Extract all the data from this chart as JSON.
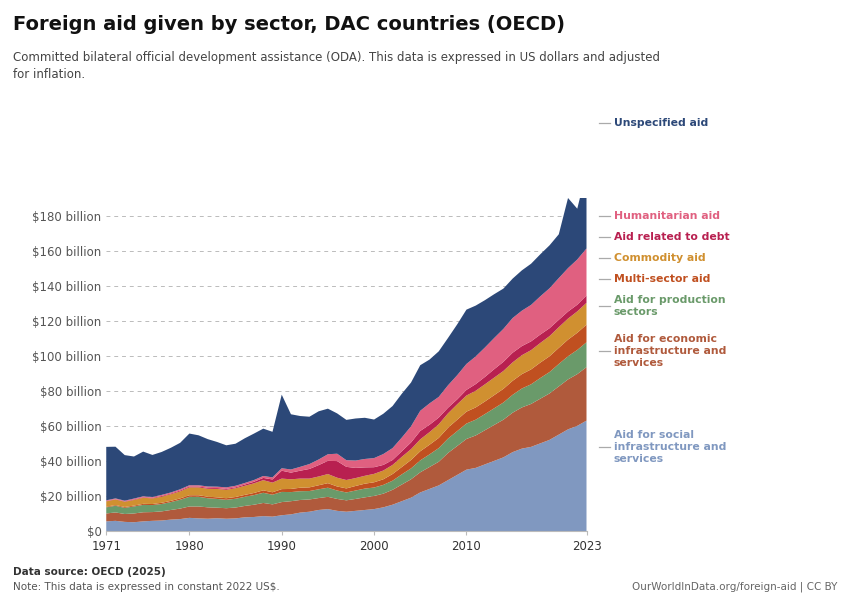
{
  "title": "Foreign aid given by sector, DAC countries (OECD)",
  "subtitle": "Committed bilateral official development assistance (ODA). This data is expressed in US dollars and adjusted\nfor inflation.",
  "datasource": "Data source: OECD (2025)",
  "note": "Note: This data is expressed in constant 2022 US$.",
  "credit": "OurWorldInData.org/foreign-aid | CC BY",
  "years": [
    1971,
    1972,
    1973,
    1974,
    1975,
    1976,
    1977,
    1978,
    1979,
    1980,
    1981,
    1982,
    1983,
    1984,
    1985,
    1986,
    1987,
    1988,
    1989,
    1990,
    1991,
    1992,
    1993,
    1994,
    1995,
    1996,
    1997,
    1998,
    1999,
    2000,
    2001,
    2002,
    2003,
    2004,
    2005,
    2006,
    2007,
    2008,
    2009,
    2010,
    2011,
    2012,
    2013,
    2014,
    2015,
    2016,
    2017,
    2018,
    2019,
    2020,
    2021,
    2022,
    2023
  ],
  "series": {
    "Aid for social infrastructure and services": {
      "color": "#8098c0",
      "values": [
        5.5,
        5.8,
        5.2,
        5.0,
        5.5,
        5.8,
        6.0,
        6.5,
        6.8,
        7.5,
        7.2,
        7.0,
        7.3,
        7.0,
        7.2,
        7.8,
        8.0,
        8.5,
        8.2,
        9.0,
        9.5,
        10.5,
        11.0,
        12.0,
        12.5,
        11.5,
        11.0,
        11.5,
        12.0,
        12.5,
        13.5,
        15.0,
        17.0,
        19.0,
        22.0,
        24.0,
        26.0,
        29.0,
        32.0,
        35.0,
        36.0,
        38.0,
        40.0,
        42.0,
        45.0,
        47.0,
        48.0,
        50.0,
        52.0,
        55.0,
        58.0,
        60.0,
        63.0
      ]
    },
    "Aid for economic infrastructure and services": {
      "color": "#b05a3c",
      "values": [
        4.5,
        4.8,
        4.5,
        5.0,
        5.2,
        5.0,
        5.2,
        5.5,
        6.0,
        6.5,
        6.8,
        6.5,
        6.0,
        6.0,
        6.2,
        6.5,
        7.0,
        7.5,
        7.0,
        7.5,
        7.5,
        7.2,
        7.0,
        6.8,
        7.0,
        6.8,
        6.5,
        6.8,
        7.2,
        7.5,
        7.8,
        8.5,
        9.5,
        10.5,
        11.5,
        12.5,
        13.5,
        15.5,
        16.5,
        17.5,
        18.5,
        19.5,
        20.5,
        21.5,
        22.5,
        23.5,
        24.5,
        25.5,
        26.5,
        27.5,
        28.5,
        29.5,
        30.5
      ]
    },
    "Aid for production sectors": {
      "color": "#6a9a6a",
      "values": [
        3.5,
        3.8,
        3.5,
        4.0,
        4.2,
        4.0,
        4.2,
        4.5,
        5.0,
        5.5,
        5.5,
        5.2,
        5.0,
        4.8,
        5.0,
        5.2,
        5.5,
        5.8,
        5.5,
        5.8,
        5.2,
        5.0,
        4.8,
        5.0,
        5.2,
        4.8,
        4.5,
        4.8,
        5.0,
        4.8,
        5.0,
        5.2,
        5.8,
        6.2,
        6.8,
        7.2,
        7.8,
        8.2,
        8.5,
        8.8,
        9.0,
        9.2,
        9.5,
        9.8,
        10.2,
        10.8,
        11.2,
        11.8,
        12.2,
        12.8,
        13.2,
        13.8,
        14.2
      ]
    },
    "Multi-sector aid": {
      "color": "#c05020",
      "values": [
        0.4,
        0.4,
        0.5,
        0.5,
        0.6,
        0.6,
        0.7,
        0.7,
        0.8,
        0.9,
        0.9,
        0.9,
        0.9,
        0.9,
        1.0,
        1.1,
        1.2,
        1.4,
        1.4,
        1.6,
        1.8,
        2.0,
        2.1,
        2.3,
        2.6,
        2.3,
        2.3,
        2.6,
        2.8,
        3.0,
        3.2,
        3.8,
        4.2,
        4.8,
        5.2,
        5.5,
        5.8,
        6.2,
        6.5,
        6.8,
        7.0,
        7.2,
        7.5,
        7.8,
        8.0,
        8.2,
        8.5,
        8.8,
        9.0,
        9.2,
        9.5,
        9.8,
        10.0
      ]
    },
    "Commodity aid": {
      "color": "#d09030",
      "values": [
        3.0,
        3.2,
        3.0,
        3.2,
        3.5,
        3.2,
        3.5,
        3.8,
        4.0,
        4.5,
        4.5,
        4.5,
        4.8,
        4.8,
        5.0,
        5.2,
        5.5,
        5.8,
        5.5,
        6.0,
        5.5,
        5.2,
        5.0,
        5.0,
        5.2,
        5.0,
        4.8,
        4.5,
        4.5,
        4.8,
        5.0,
        5.2,
        5.8,
        6.2,
        6.8,
        7.2,
        7.8,
        8.2,
        8.8,
        9.2,
        9.5,
        9.8,
        10.0,
        10.2,
        10.5,
        10.8,
        11.0,
        11.2,
        11.5,
        11.8,
        12.0,
        12.2,
        12.5
      ]
    },
    "Aid related to debt": {
      "color": "#b82050",
      "values": [
        0.2,
        0.2,
        0.2,
        0.3,
        0.3,
        0.3,
        0.4,
        0.4,
        0.5,
        0.5,
        0.5,
        0.5,
        0.5,
        0.5,
        0.5,
        0.7,
        0.9,
        1.3,
        1.8,
        4.5,
        3.8,
        4.5,
        5.5,
        6.5,
        7.5,
        9.5,
        7.5,
        5.8,
        4.8,
        3.8,
        3.2,
        2.8,
        3.2,
        3.8,
        4.8,
        4.2,
        3.8,
        3.2,
        2.8,
        3.2,
        3.8,
        4.2,
        4.8,
        5.2,
        5.5,
        5.2,
        5.0,
        4.8,
        4.5,
        4.2,
        4.0,
        3.8,
        4.2
      ]
    },
    "Humanitarian aid": {
      "color": "#e06080",
      "values": [
        0.4,
        0.4,
        0.4,
        0.5,
        0.5,
        0.5,
        0.6,
        0.6,
        0.7,
        0.7,
        0.7,
        0.8,
        0.8,
        0.9,
        0.9,
        0.9,
        1.0,
        1.1,
        1.2,
        1.4,
        1.8,
        2.2,
        2.8,
        3.2,
        3.8,
        4.2,
        3.8,
        4.2,
        4.8,
        5.2,
        6.2,
        6.8,
        7.8,
        9.2,
        11.5,
        12.2,
        11.8,
        12.8,
        13.8,
        14.8,
        15.8,
        16.8,
        17.8,
        18.8,
        19.8,
        20.2,
        20.8,
        21.8,
        22.8,
        23.8,
        24.8,
        25.8,
        26.8
      ]
    },
    "Unspecified aid": {
      "color": "#2c4878",
      "values": [
        30.5,
        29.5,
        26.0,
        24.0,
        25.5,
        24.0,
        24.5,
        25.5,
        26.5,
        29.5,
        28.5,
        27.0,
        25.5,
        24.0,
        24.0,
        25.5,
        26.5,
        27.0,
        26.0,
        42.0,
        31.5,
        29.0,
        27.0,
        27.5,
        26.0,
        23.0,
        23.0,
        24.0,
        23.5,
        22.0,
        23.0,
        24.0,
        25.0,
        25.0,
        26.0,
        25.0,
        26.0,
        27.0,
        29.0,
        31.0,
        29.0,
        27.0,
        25.0,
        23.0,
        22.5,
        23.0,
        23.5,
        24.0,
        24.5,
        25.0,
        40.0,
        29.0,
        44.0
      ]
    }
  },
  "ylim": [
    0,
    190
  ],
  "yticks": [
    0,
    20,
    40,
    60,
    80,
    100,
    120,
    140,
    160,
    180
  ],
  "ytick_labels": [
    "$0",
    "$20 billion",
    "$40 billion",
    "$60 billion",
    "$80 billion",
    "$100 billion",
    "$120 billion",
    "$140 billion",
    "$160 billion",
    "$180 billion"
  ],
  "xticks": [
    1971,
    1980,
    1990,
    2000,
    2010,
    2023
  ],
  "bg_color": "#ffffff",
  "logo_bg": "#1a3a5c",
  "logo_red": "#c0001a",
  "legend_items": [
    {
      "key": "Unspecified aid",
      "label": "Unspecified aid"
    },
    {
      "key": "Humanitarian aid",
      "label": "Humanitarian aid"
    },
    {
      "key": "Aid related to debt",
      "label": "Aid related to debt"
    },
    {
      "key": "Commodity aid",
      "label": "Commodity aid"
    },
    {
      "key": "Multi-sector aid",
      "label": "Multi-sector aid"
    },
    {
      "key": "Aid for production sectors",
      "label": "Aid for production\nsectors"
    },
    {
      "key": "Aid for economic infrastructure and services",
      "label": "Aid for economic\ninfrastructure and\nservices"
    },
    {
      "key": "Aid for social infrastructure and services",
      "label": "Aid for social\ninfrastructure and\nservices"
    }
  ]
}
